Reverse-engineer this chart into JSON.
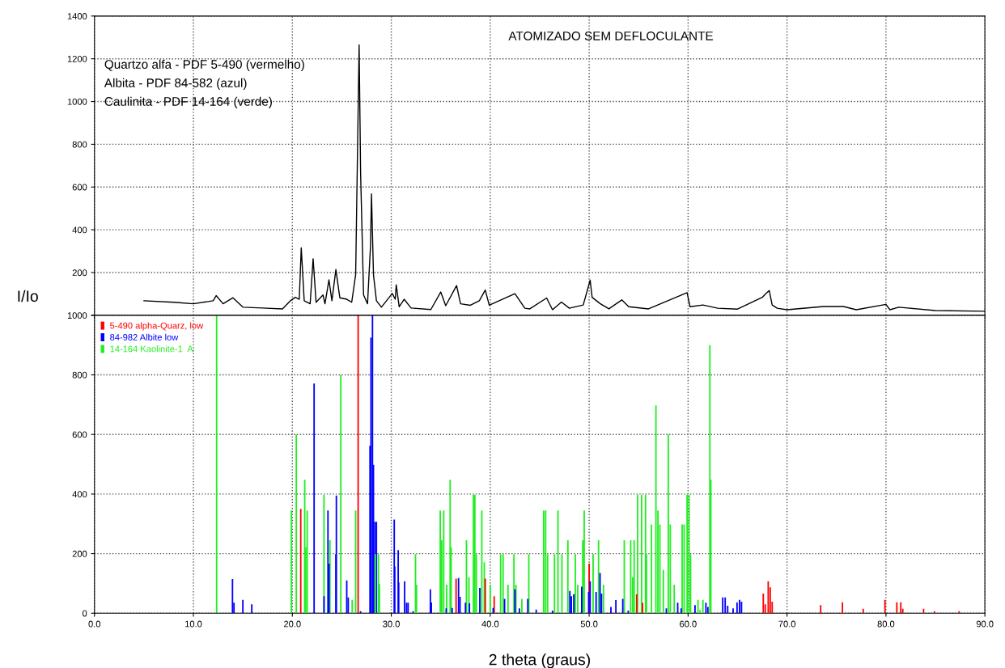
{
  "chart_data": [
    {
      "type": "line",
      "title": "ATOMIZADO SEM DEFLOCULANTE",
      "annotations": [
        "Quartzo alfa - PDF 5-490 (vermelho)",
        "Albita - PDF 84-582 (azul)",
        "Caulinita - PDF 14-164 (verde)"
      ],
      "series": [
        {
          "color": "#000000",
          "x": [
            5.0,
            8.0,
            10.0,
            12.0,
            12.3,
            13.0,
            14.0,
            15.0,
            17.0,
            19.0,
            19.8,
            20.3,
            20.7,
            20.9,
            21.2,
            21.8,
            22.1,
            22.4,
            23.1,
            23.3,
            23.7,
            24.0,
            24.4,
            24.8,
            25.5,
            26.0,
            26.4,
            26.75,
            26.9,
            27.2,
            27.6,
            27.9,
            28.0,
            28.2,
            28.5,
            29.0,
            30.1,
            30.4,
            30.5,
            30.8,
            31.3,
            32.0,
            34.0,
            35.0,
            35.5,
            36.6,
            37.0,
            38.0,
            38.9,
            39.5,
            39.9,
            42.5,
            43.5,
            44.0,
            45.7,
            46.3,
            47.2,
            48.0,
            49.4,
            50.1,
            50.3,
            51.1,
            52.0,
            53.3,
            54.0,
            56.0,
            59.9,
            60.2,
            61.5,
            63.0,
            65.0,
            67.5,
            67.8,
            68.2,
            68.5,
            69.0,
            70.0,
            73.7,
            75.7,
            77.0,
            80.0,
            80.4,
            81.3,
            85.0,
            90.0
          ],
          "values": [
            68,
            61,
            54,
            68,
            92,
            54,
            82,
            38,
            34,
            30,
            68,
            84,
            75,
            316,
            68,
            54,
            265,
            61,
            95,
            54,
            166,
            68,
            214,
            82,
            75,
            61,
            190,
            1265,
            666,
            95,
            54,
            326,
            568,
            190,
            68,
            38,
            102,
            75,
            143,
            40,
            75,
            34,
            27,
            109,
            45,
            139,
            54,
            47,
            68,
            118,
            47,
            101,
            33,
            30,
            81,
            26,
            62,
            33,
            48,
            164,
            84,
            55,
            30,
            72,
            40,
            30,
            106,
            40,
            48,
            33,
            29,
            84,
            99,
            116,
            48,
            33,
            26,
            41,
            41,
            26,
            51,
            26,
            38,
            22,
            19
          ]
        }
      ],
      "xlim": [
        0,
        90
      ],
      "xticks": [
        {
          "value": 0,
          "label": null
        },
        {
          "value": 10,
          "label": null
        },
        {
          "value": 20,
          "label": null
        },
        {
          "value": 30,
          "label": null
        },
        {
          "value": 40,
          "label": null
        },
        {
          "value": 50,
          "label": null
        },
        {
          "value": 60,
          "label": null
        },
        {
          "value": 70,
          "label": null
        },
        {
          "value": 80,
          "label": null
        },
        {
          "value": 90,
          "label": null
        }
      ],
      "ylim": [
        0,
        1400
      ],
      "yticks": [
        {
          "value": 0,
          "label": null
        },
        200,
        400,
        600,
        800,
        1000,
        1200,
        1400
      ],
      "tick_labels": "y",
      "grid": true,
      "marker": "none",
      "line_style": "solid"
    },
    {
      "type": "bar",
      "xlabel": "2 theta (graus)",
      "ylabel": "I/Io",
      "legend": "top left",
      "series": [
        {
          "name": "5-490 alpha-Quarz, low",
          "color": "#ff0000",
          "x": [
            20.85,
            26.65,
            36.55,
            39.5,
            40.4,
            50.0,
            54.8,
            55.4,
            67.6,
            67.8,
            68.1,
            68.3,
            68.5,
            73.4,
            75.6,
            77.7,
            79.9,
            81.1,
            81.5,
            81.7,
            83.8,
            84.9,
            87.4
          ],
          "values": [
            350,
            1000,
            116,
            116,
            57,
            166,
            64,
            35,
            66,
            30,
            107,
            87,
            39,
            27,
            37,
            15,
            45,
            37,
            37,
            15,
            15,
            7,
            7
          ]
        },
        {
          "name": "84-982 Albite low",
          "color": "#0000ff",
          "x": [
            13.95,
            14.1,
            15.0,
            15.9,
            22.2,
            23.2,
            23.6,
            23.7,
            24.4,
            24.45,
            25.5,
            25.65,
            26.9,
            27.85,
            27.95,
            28.1,
            28.2,
            28.35,
            28.5,
            30.3,
            30.35,
            30.7,
            30.75,
            31.35,
            31.55,
            31.7,
            32.2,
            33.95,
            34.05,
            35.55,
            36.15,
            36.8,
            36.95,
            37.5,
            37.9,
            38.95,
            40.3,
            41.45,
            42.5,
            42.95,
            43.8,
            44.65,
            46.3,
            48.05,
            48.2,
            48.45,
            49.25,
            49.95,
            50.1,
            50.7,
            51.1,
            51.25,
            52.2,
            52.7,
            53.4,
            53.95,
            57.8,
            58.95,
            59.3,
            60.7,
            61.8,
            62.0,
            63.5,
            63.75,
            64.0,
            64.55,
            64.95,
            65.2,
            65.4
          ],
          "values": [
            115,
            35,
            45,
            30,
            771,
            57,
            345,
            166,
            198,
            395,
            110,
            53,
            7,
            562,
            925,
            1000,
            498,
            307,
            307,
            314,
            157,
            212,
            103,
            107,
            35,
            35,
            7,
            80,
            36,
            16,
            18,
            118,
            55,
            35,
            33,
            85,
            18,
            48,
            80,
            16,
            48,
            12,
            9,
            75,
            57,
            64,
            89,
            71,
            107,
            71,
            135,
            66,
            21,
            44,
            48,
            9,
            16,
            35,
            16,
            27,
            35,
            21,
            53,
            53,
            25,
            16,
            36,
            45,
            39
          ]
        },
        {
          "name": "14-164 Kaolinite-1  A",
          "color": "#22ee22",
          "x": [
            12.35,
            19.9,
            20.4,
            21.25,
            21.35,
            21.5,
            23.2,
            23.8,
            24.9,
            26.05,
            26.4,
            28.4,
            28.7,
            28.8,
            32.45,
            32.55,
            34.95,
            35.1,
            35.3,
            35.6,
            35.95,
            36.05,
            37.6,
            37.85,
            38.3,
            38.45,
            38.6,
            39.15,
            39.4,
            40.0,
            41.05,
            41.3,
            41.8,
            42.4,
            42.6,
            43.2,
            43.9,
            45.4,
            45.6,
            45.8,
            46.5,
            46.85,
            47.25,
            47.85,
            48.6,
            48.85,
            49.35,
            49.5,
            50.4,
            50.95,
            51.45,
            53.55,
            54.2,
            54.4,
            54.55,
            54.9,
            55.3,
            55.7,
            55.8,
            56.3,
            56.75,
            56.95,
            57.15,
            57.5,
            58.0,
            58.2,
            58.6,
            59.4,
            59.6,
            59.9,
            60.1,
            60.25,
            61.0,
            61.2,
            61.5,
            62.2,
            62.3
          ],
          "values": [
            1000,
            345,
            600,
            448,
            221,
            345,
            398,
            245,
            800,
            45,
            345,
            198,
            198,
            98,
            198,
            96,
            345,
            245,
            345,
            96,
            448,
            221,
            245,
            121,
            398,
            398,
            198,
            345,
            171,
            96,
            198,
            198,
            96,
            198,
            96,
            48,
            198,
            345,
            345,
            198,
            198,
            345,
            198,
            245,
            198,
            96,
            245,
            345,
            198,
            245,
            96,
            245,
            245,
            121,
            245,
            398,
            398,
            398,
            198,
            298,
            698,
            345,
            298,
            145,
            600,
            298,
            96,
            298,
            298,
            398,
            398,
            198,
            45,
            10,
            45,
            900,
            448
          ]
        }
      ],
      "xlim": [
        0,
        90
      ],
      "xticks": [
        {
          "value": 0,
          "label": "0.0"
        },
        {
          "value": 10,
          "label": "10.0"
        },
        {
          "value": 20,
          "label": "20.0"
        },
        {
          "value": 30,
          "label": "30.0"
        },
        {
          "value": 40,
          "label": "40.0"
        },
        {
          "value": 50,
          "label": "50.0"
        },
        {
          "value": 60,
          "label": "60.0"
        },
        {
          "value": 70,
          "label": "70.0"
        },
        {
          "value": 80,
          "label": "80.0"
        },
        {
          "value": 90,
          "label": "90.0"
        }
      ],
      "ylim": [
        0,
        1000
      ],
      "yticks": [
        0,
        200,
        400,
        600,
        800,
        1000
      ],
      "grid": true
    }
  ]
}
